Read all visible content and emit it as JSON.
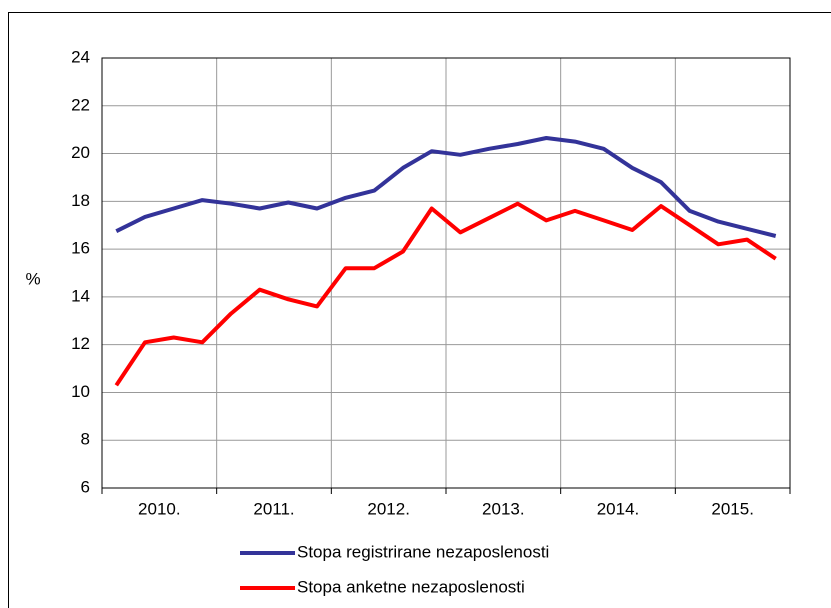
{
  "chart_data": {
    "type": "line",
    "y_label": "%",
    "categories": [
      "2010.",
      "2011.",
      "2012.",
      "2013.",
      "2014.",
      "2015."
    ],
    "series": [
      {
        "name": "Stopa registrirane nezaposlenosti",
        "color": "#333399",
        "values": [
          [
            16.75,
            17.35,
            17.7,
            18.05
          ],
          [
            17.9,
            17.7,
            17.95,
            17.7
          ],
          [
            18.15,
            18.45,
            19.4,
            20.1
          ],
          [
            19.95,
            20.2,
            20.4,
            20.65
          ],
          [
            20.5,
            20.2,
            19.4,
            18.8
          ],
          [
            17.6,
            17.15,
            16.85,
            16.55
          ]
        ]
      },
      {
        "name": "Stopa anketne nezaposlenosti",
        "color": "#ff0000",
        "values": [
          [
            10.3,
            12.1,
            12.3,
            12.1
          ],
          [
            13.3,
            14.3,
            13.9,
            13.6
          ],
          [
            15.2,
            15.2,
            15.9,
            17.7
          ],
          [
            16.7,
            17.3,
            17.9,
            17.2
          ],
          [
            17.6,
            17.2,
            16.8,
            17.8
          ],
          [
            17.0,
            16.2,
            16.4,
            15.6
          ]
        ]
      }
    ],
    "ylim": [
      6,
      24
    ],
    "yticks": [
      6,
      8,
      10,
      12,
      14,
      16,
      18,
      20,
      22,
      24
    ],
    "grid": true
  }
}
